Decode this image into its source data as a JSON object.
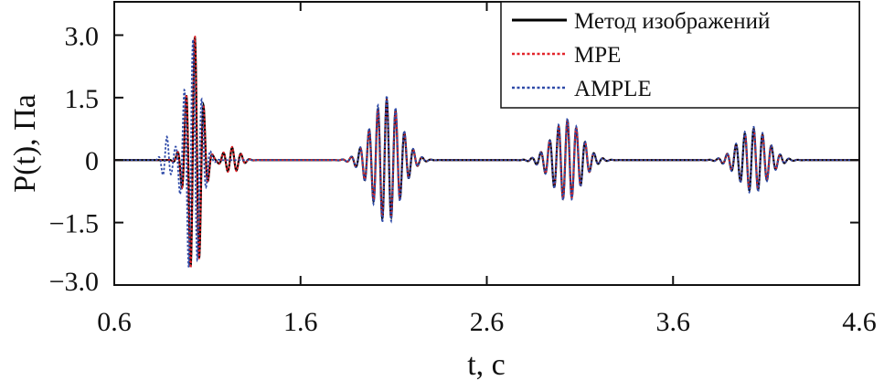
{
  "chart_data": {
    "type": "line",
    "xlabel": "t, с",
    "ylabel": "P(t), Па",
    "xlim": [
      0.6,
      4.6
    ],
    "ylim": [
      -3.0,
      3.8
    ],
    "xticks": [
      "0.6",
      "1.6",
      "2.6",
      "3.6",
      "4.6"
    ],
    "xtick_values": [
      0.6,
      1.6,
      2.6,
      3.6,
      4.6
    ],
    "yticks": [
      "3.0",
      "1.5",
      "0",
      "−1.5",
      "−3.0"
    ],
    "ytick_values": [
      3.0,
      1.5,
      0,
      -1.5,
      -3.0
    ],
    "grid": false,
    "legend_position": "top-right",
    "series": [
      {
        "name": "Метод изображений",
        "color": "#000000",
        "style": "solid",
        "bursts": [
          {
            "center": 1.03,
            "amplitude": 2.95,
            "width": 0.055,
            "frequency": 21.0
          },
          {
            "center": 1.23,
            "amplitude": 0.3,
            "width": 0.06,
            "frequency": 21.0
          },
          {
            "center": 2.06,
            "amplitude": 1.45,
            "width": 0.11,
            "frequency": 21.0
          },
          {
            "center": 3.03,
            "amplitude": 0.95,
            "width": 0.11,
            "frequency": 21.0
          },
          {
            "center": 4.03,
            "amplitude": 0.75,
            "width": 0.11,
            "frequency": 21.0
          }
        ]
      },
      {
        "name": "MPE",
        "color": "#e2232a",
        "style": "dotted",
        "bursts": [
          {
            "center": 1.03,
            "amplitude": 2.98,
            "width": 0.055,
            "frequency": 21.0
          },
          {
            "center": 1.23,
            "amplitude": 0.32,
            "width": 0.06,
            "frequency": 21.0
          },
          {
            "center": 2.06,
            "amplitude": 1.42,
            "width": 0.11,
            "frequency": 21.0
          },
          {
            "center": 3.03,
            "amplitude": 0.95,
            "width": 0.11,
            "frequency": 21.0
          },
          {
            "center": 4.03,
            "amplitude": 0.72,
            "width": 0.11,
            "frequency": 21.0
          }
        ]
      },
      {
        "name": "AMPLE",
        "color": "#2e4aa8",
        "style": "dotted",
        "bursts": [
          {
            "center": 1.02,
            "amplitude": 2.9,
            "width": 0.06,
            "frequency": 21.0
          },
          {
            "center": 0.88,
            "amplitude": 0.55,
            "width": 0.03,
            "frequency": 21.0
          },
          {
            "center": 2.06,
            "amplitude": 1.55,
            "width": 0.11,
            "frequency": 21.0
          },
          {
            "center": 3.03,
            "amplitude": 1.0,
            "width": 0.11,
            "frequency": 21.0
          },
          {
            "center": 4.03,
            "amplitude": 0.8,
            "width": 0.11,
            "frequency": 21.0
          }
        ]
      }
    ]
  }
}
